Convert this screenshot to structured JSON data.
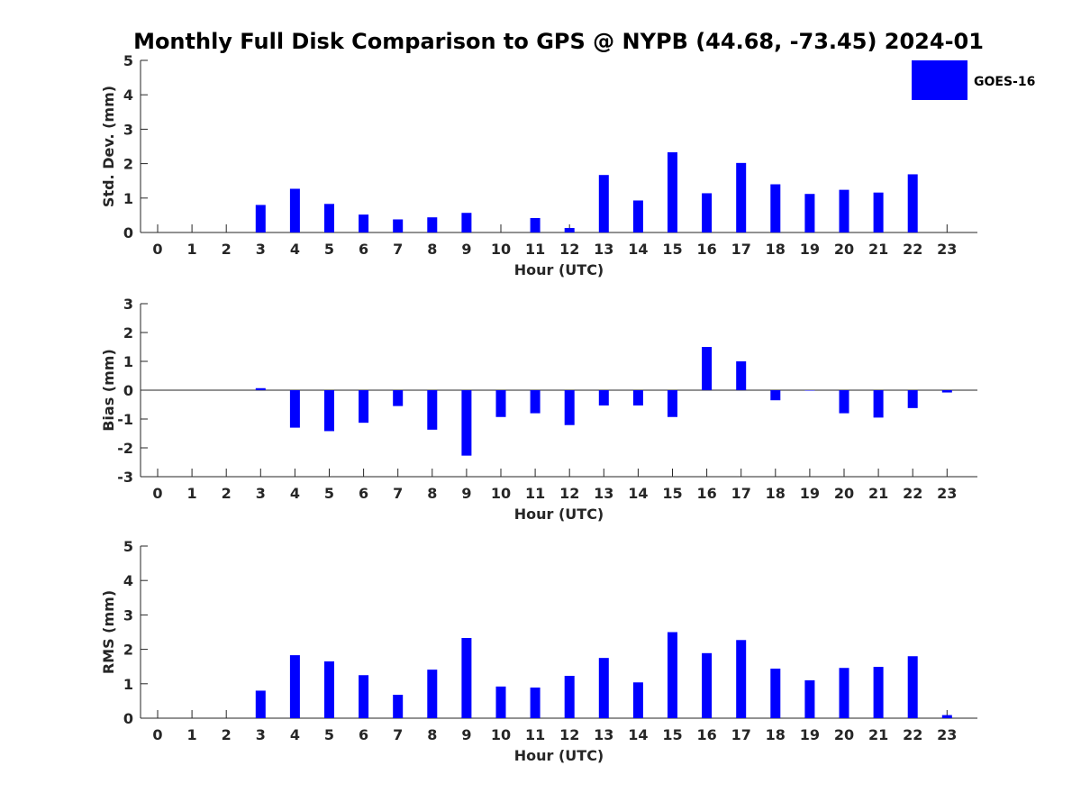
{
  "figure": {
    "title": "Monthly Full Disk Comparison to GPS @ NYPB (44.68, -73.45) 2024-01",
    "legend": {
      "label": "GOES-16",
      "color": "#0000ff",
      "placement": "top-right"
    }
  },
  "chart_data": [
    {
      "type": "bar",
      "xlabel": "Hour (UTC)",
      "ylabel": "Std. Dev. (mm)",
      "ylim": [
        0,
        5
      ],
      "yticks": [
        0,
        1,
        2,
        3,
        4,
        5
      ],
      "categories": [
        "0",
        "1",
        "2",
        "3",
        "4",
        "5",
        "6",
        "7",
        "8",
        "9",
        "10",
        "11",
        "12",
        "13",
        "14",
        "15",
        "16",
        "17",
        "18",
        "19",
        "20",
        "21",
        "22",
        "23"
      ],
      "series": [
        {
          "name": "GOES-16",
          "color": "#0000ff",
          "values": [
            null,
            null,
            null,
            0.8,
            1.27,
            0.83,
            0.52,
            0.38,
            0.44,
            0.57,
            null,
            0.42,
            0.13,
            1.67,
            0.93,
            2.33,
            1.14,
            2.02,
            1.4,
            1.12,
            1.24,
            1.16,
            1.69,
            null
          ]
        }
      ],
      "grid": false
    },
    {
      "type": "bar",
      "xlabel": "Hour (UTC)",
      "ylabel": "Bias (mm)",
      "ylim": [
        -3,
        3
      ],
      "yticks": [
        -3,
        -2,
        -1,
        0,
        1,
        2,
        3
      ],
      "categories": [
        "0",
        "1",
        "2",
        "3",
        "4",
        "5",
        "6",
        "7",
        "8",
        "9",
        "10",
        "11",
        "12",
        "13",
        "14",
        "15",
        "16",
        "17",
        "18",
        "19",
        "20",
        "21",
        "22",
        "23"
      ],
      "series": [
        {
          "name": "GOES-16",
          "color": "#0000ff",
          "values": [
            null,
            null,
            null,
            0.07,
            -1.3,
            -1.42,
            -1.13,
            -0.55,
            -1.37,
            -2.27,
            -0.93,
            -0.8,
            -1.21,
            -0.53,
            -0.53,
            -0.93,
            1.5,
            1.0,
            -0.35,
            0.0,
            -0.8,
            -0.95,
            -0.62,
            -0.08
          ]
        }
      ],
      "grid": false
    },
    {
      "type": "bar",
      "xlabel": "Hour (UTC)",
      "ylabel": "RMS (mm)",
      "ylim": [
        0,
        5
      ],
      "yticks": [
        0,
        1,
        2,
        3,
        4,
        5
      ],
      "categories": [
        "0",
        "1",
        "2",
        "3",
        "4",
        "5",
        "6",
        "7",
        "8",
        "9",
        "10",
        "11",
        "12",
        "13",
        "14",
        "15",
        "16",
        "17",
        "18",
        "19",
        "20",
        "21",
        "22",
        "23"
      ],
      "series": [
        {
          "name": "GOES-16",
          "color": "#0000ff",
          "values": [
            null,
            null,
            null,
            0.8,
            1.83,
            1.65,
            1.25,
            0.68,
            1.41,
            2.33,
            0.92,
            0.89,
            1.23,
            1.75,
            1.04,
            2.5,
            1.89,
            2.27,
            1.44,
            1.1,
            1.46,
            1.49,
            1.8,
            0.09
          ]
        }
      ],
      "grid": false
    }
  ]
}
